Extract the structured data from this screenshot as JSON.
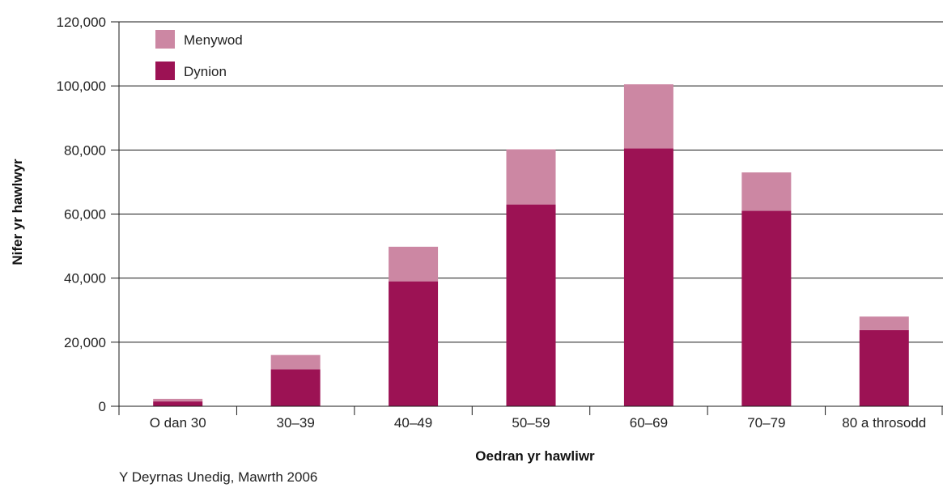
{
  "chart_data": {
    "type": "bar",
    "stacked": true,
    "categories": [
      "O dan 30",
      "30–39",
      "40–49",
      "50–59",
      "60–69",
      "70–79",
      "80 a throsodd"
    ],
    "series": [
      {
        "name": "Dynion",
        "color": "#9c1254",
        "values": [
          1500,
          11500,
          39000,
          63000,
          80500,
          61000,
          23800
        ]
      },
      {
        "name": "Menywod",
        "color": "#cc87a3",
        "values": [
          800,
          4500,
          10800,
          17200,
          20000,
          12000,
          4200
        ]
      }
    ],
    "ylabel": "Nifer yr hawlwyr",
    "xlabel": "Oedran yr hawliwr",
    "ylim": [
      0,
      120000
    ],
    "yticks": [
      0,
      20000,
      40000,
      60000,
      80000,
      100000,
      120000
    ],
    "ytick_labels": [
      "0",
      "20,000",
      "40,000",
      "60,000",
      "80,000",
      "100,000",
      "120,000"
    ],
    "grid": true,
    "legend_placement": "top-left",
    "legend": [
      {
        "label": "Menywod",
        "color": "#cc87a3"
      },
      {
        "label": "Dynion",
        "color": "#9c1254"
      }
    ],
    "note": "Y Deyrnas Unedig, Mawrth 2006"
  }
}
